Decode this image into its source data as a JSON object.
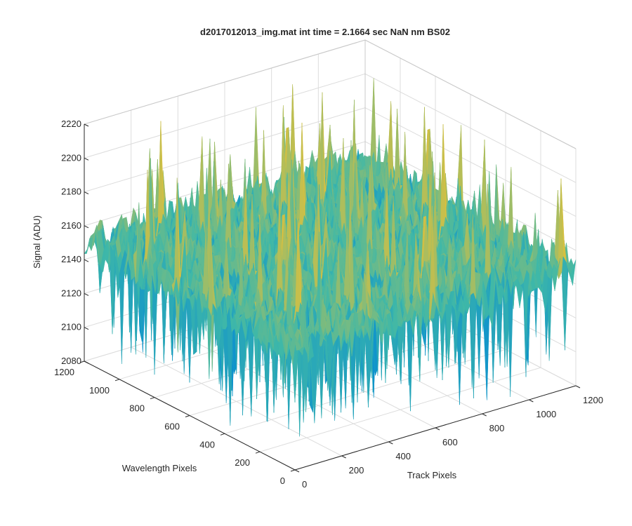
{
  "figure": {
    "title": "d2017012013_img.mat int time = 2.1664 sec  NaN nm BS02"
  },
  "chart_data": {
    "type": "surface",
    "title": "d2017012013_img.mat int time = 2.1664 sec  NaN nm BS02",
    "xlabel": "Track Pixels",
    "ylabel": "Wavelength Pixels",
    "zlabel": "Signal (ADU)",
    "xlim": [
      0,
      1200
    ],
    "ylim": [
      0,
      1200
    ],
    "zlim": [
      2080,
      2220
    ],
    "x_ticks": [
      "0",
      "200",
      "400",
      "600",
      "800",
      "1000",
      "1200"
    ],
    "y_ticks": [
      "0",
      "200",
      "400",
      "600",
      "800",
      "1000",
      "1200"
    ],
    "z_ticks": [
      "2080",
      "2100",
      "2120",
      "2140",
      "2160",
      "2180",
      "2200",
      "2220"
    ],
    "grid": true,
    "colormap": "parula",
    "colors": {
      "low": "#0a8fd0",
      "mid": "#3fb8a8",
      "high": "#f2c12e"
    },
    "surface_level_approx": 2150,
    "noise_range_approx": [
      2085,
      2215
    ]
  }
}
